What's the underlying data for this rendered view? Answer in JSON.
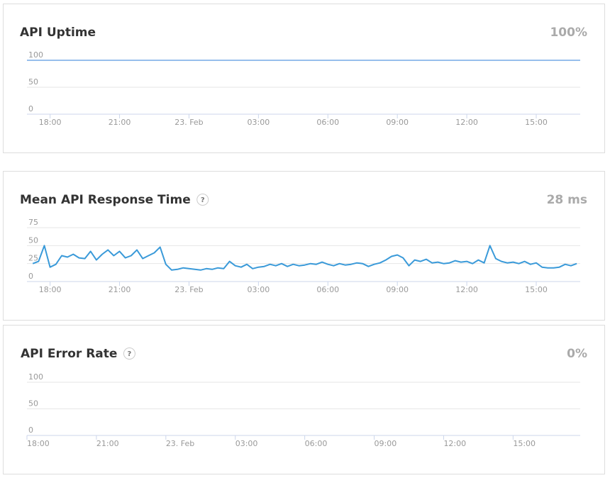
{
  "chart_data": [
    {
      "type": "line",
      "title": "API Uptime",
      "summary": "100%",
      "xlim": [
        17.0,
        40.9
      ],
      "xticks": [
        {
          "value": 18,
          "label": "18:00"
        },
        {
          "value": 21,
          "label": "21:00"
        },
        {
          "value": 24,
          "label": "23. Feb"
        },
        {
          "value": 27,
          "label": "03:00"
        },
        {
          "value": 30,
          "label": "06:00"
        },
        {
          "value": 33,
          "label": "09:00"
        },
        {
          "value": 36,
          "label": "12:00"
        },
        {
          "value": 39,
          "label": "15:00"
        }
      ],
      "ylim": [
        0,
        100
      ],
      "yticks": [
        0,
        50,
        100
      ],
      "grid": true,
      "series": [
        {
          "color": "#2f7ed8",
          "x": [
            17.0,
            40.9
          ],
          "values": [
            100,
            100
          ]
        }
      ]
    },
    {
      "type": "line",
      "title": "Mean API Response Time",
      "help": "?",
      "summary": "28 ms",
      "xlim": [
        17.0,
        40.9
      ],
      "xticks": [
        {
          "value": 18,
          "label": "18:00"
        },
        {
          "value": 21,
          "label": "21:00"
        },
        {
          "value": 24,
          "label": "23. Feb"
        },
        {
          "value": 27,
          "label": "03:00"
        },
        {
          "value": 30,
          "label": "06:00"
        },
        {
          "value": 33,
          "label": "09:00"
        },
        {
          "value": 36,
          "label": "12:00"
        },
        {
          "value": 39,
          "label": "15:00"
        }
      ],
      "ylim": [
        0,
        75
      ],
      "yticks": [
        0,
        25,
        50,
        75
      ],
      "grid": true,
      "series": [
        {
          "color": "#3a9ad9",
          "x": [
            17.25,
            17.5,
            17.75,
            18,
            18.25,
            18.5,
            18.75,
            19,
            19.25,
            19.5,
            19.75,
            20,
            20.25,
            20.5,
            20.75,
            21,
            21.25,
            21.5,
            21.75,
            22,
            22.25,
            22.5,
            22.75,
            23,
            23.25,
            23.5,
            23.75,
            24,
            24.25,
            24.5,
            24.75,
            25,
            25.25,
            25.5,
            25.75,
            26,
            26.25,
            26.5,
            26.75,
            27,
            27.25,
            27.5,
            27.75,
            28,
            28.25,
            28.5,
            28.75,
            29,
            29.25,
            29.5,
            29.75,
            30,
            30.25,
            30.5,
            30.75,
            31,
            31.25,
            31.5,
            31.75,
            32,
            32.25,
            32.5,
            32.75,
            33,
            33.25,
            33.5,
            33.75,
            34,
            34.25,
            34.5,
            34.75,
            35,
            35.25,
            35.5,
            35.75,
            36,
            36.25,
            36.5,
            36.75,
            37,
            37.25,
            37.5,
            37.75,
            38,
            38.25,
            38.5,
            38.75,
            39,
            39.25,
            39.5,
            39.75,
            40,
            40.25,
            40.5,
            40.75
          ],
          "values": [
            25,
            28,
            50,
            20,
            24,
            36,
            34,
            38,
            33,
            32,
            42,
            30,
            38,
            44,
            36,
            42,
            33,
            36,
            44,
            32,
            36,
            40,
            48,
            24,
            16,
            17,
            19,
            18,
            17,
            16,
            18,
            17,
            19,
            18,
            28,
            22,
            20,
            24,
            18,
            20,
            21,
            24,
            22,
            25,
            21,
            24,
            22,
            23,
            25,
            24,
            27,
            24,
            22,
            25,
            23,
            24,
            26,
            25,
            21,
            24,
            26,
            30,
            35,
            37,
            33,
            22,
            30,
            28,
            31,
            26,
            27,
            25,
            26,
            29,
            27,
            28,
            25,
            30,
            26,
            50,
            32,
            28,
            26,
            27,
            25,
            28,
            24,
            26,
            20,
            19,
            19,
            20,
            24,
            22,
            25
          ]
        }
      ]
    },
    {
      "type": "line",
      "title": "API Error Rate",
      "help": "?",
      "summary": "0%",
      "xlim": [
        18.0,
        41.9
      ],
      "xticks": [
        {
          "value": 18,
          "label": "18:00"
        },
        {
          "value": 21,
          "label": "21:00"
        },
        {
          "value": 24,
          "label": "23. Feb"
        },
        {
          "value": 27,
          "label": "03:00"
        },
        {
          "value": 30,
          "label": "06:00"
        },
        {
          "value": 33,
          "label": "09:00"
        },
        {
          "value": 36,
          "label": "12:00"
        },
        {
          "value": 39,
          "label": "15:00"
        }
      ],
      "ylim": [
        0,
        100
      ],
      "yticks": [
        0,
        50,
        100
      ],
      "grid": true,
      "series": []
    }
  ]
}
